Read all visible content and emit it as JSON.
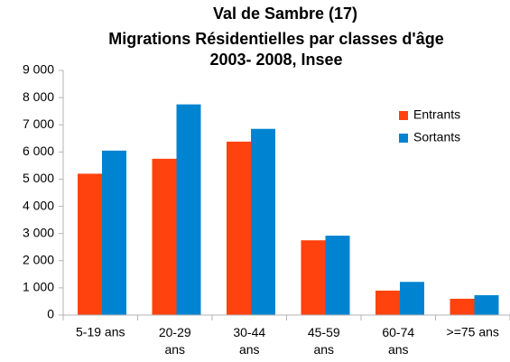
{
  "chart_data": {
    "type": "bar",
    "title": [
      "Val de Sambre (17)",
      "Migrations Résidentielles par classes d'âge",
      "2003- 2008, Insee"
    ],
    "categories": [
      "5-19 ans",
      "20-29 ans",
      "30-44 ans",
      "45-59 ans",
      "60-74 ans",
      ">=75 ans"
    ],
    "series": [
      {
        "name": "Entrants",
        "color": "#ff420e",
        "values": [
          5200,
          5750,
          6380,
          2750,
          900,
          600
        ]
      },
      {
        "name": "Sortants",
        "color": "#0084d1",
        "values": [
          6050,
          7750,
          6850,
          2920,
          1220,
          730
        ]
      }
    ],
    "ylim": [
      0,
      9000
    ],
    "yticks": [
      0,
      {
        "value": 1000,
        "label": "1 000"
      },
      {
        "value": 2000,
        "label": "2 000"
      },
      {
        "value": 3000,
        "label": "3 000"
      },
      {
        "value": 4000,
        "label": "4 000"
      },
      {
        "value": 5000,
        "label": "5 000"
      },
      {
        "value": 6000,
        "label": "6 000"
      },
      {
        "value": 7000,
        "label": "7 000"
      },
      {
        "value": 8000,
        "label": "8 000"
      },
      {
        "value": 9000,
        "label": "9 000"
      }
    ],
    "grid": false,
    "legend": "upper right"
  }
}
